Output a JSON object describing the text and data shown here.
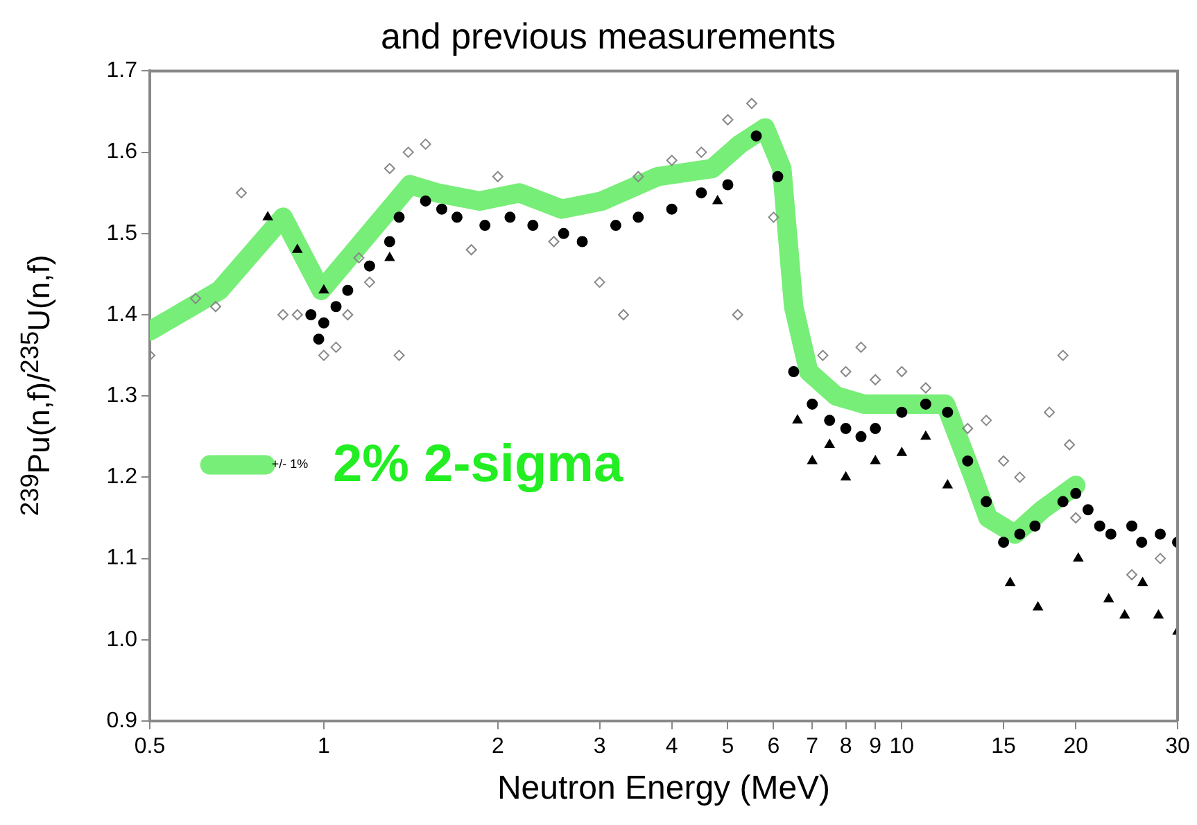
{
  "chart_data": {
    "type": "scatter",
    "title": "and previous measurements",
    "xlabel": "Neutron Energy (MeV)",
    "ylabel": "$^{239}$Pu(n,f)/$^{235}$U(n,f)",
    "annotations": [
      "2% 2-sigma"
    ],
    "log": "x",
    "grid": false,
    "legend": "left",
    "xlim": [
      0.5,
      30
    ],
    "xticks": [
      0.5,
      1,
      2,
      3,
      4,
      5,
      6,
      7,
      8,
      9,
      10,
      15,
      20,
      30
    ],
    "ylim": [
      0.9,
      1.7
    ],
    "yticks": [
      {
        "value": 0.9,
        "label": "0.9"
      },
      {
        "value": 1.0,
        "label": "1.0"
      },
      {
        "value": 1.1,
        "label": "1.1"
      },
      {
        "value": 1.2,
        "label": "1.2"
      },
      {
        "value": 1.3,
        "label": "1.3"
      },
      {
        "value": 1.4,
        "label": "1.4"
      },
      {
        "value": 1.5,
        "label": "1.5"
      },
      {
        "value": 1.6,
        "label": "1.6"
      },
      {
        "value": 1.7,
        "label": "1.7"
      }
    ],
    "series": [
      {
        "marker": "circle",
        "color": "#000000",
        "x": [
          0.95,
          0.98,
          1.0,
          1.05,
          1.1,
          1.2,
          1.3,
          1.35,
          1.5,
          1.6,
          1.7,
          1.9,
          2.1,
          2.3,
          2.6,
          2.8,
          3.2,
          3.5,
          4,
          4.5,
          5,
          5.6,
          6.1,
          6.5,
          7,
          7.5,
          8,
          8.5,
          9,
          10,
          11,
          12,
          13,
          14,
          15,
          16,
          17,
          19,
          20,
          21,
          22,
          23,
          25,
          26,
          28,
          30
        ],
        "values": [
          1.4,
          1.37,
          1.39,
          1.41,
          1.43,
          1.46,
          1.49,
          1.52,
          1.54,
          1.53,
          1.52,
          1.51,
          1.52,
          1.51,
          1.5,
          1.49,
          1.51,
          1.52,
          1.53,
          1.55,
          1.56,
          1.62,
          1.57,
          1.33,
          1.29,
          1.27,
          1.26,
          1.25,
          1.26,
          1.28,
          1.29,
          1.28,
          1.22,
          1.17,
          1.12,
          1.13,
          1.14,
          1.17,
          1.18,
          1.16,
          1.14,
          1.13,
          1.14,
          1.12,
          1.13,
          1.12
        ]
      },
      {
        "marker": "triangle",
        "color": "#000000",
        "x": [
          0.8,
          0.9,
          1.0,
          1.3,
          4.8,
          6.6,
          7,
          7.5,
          8,
          9,
          10,
          11,
          12,
          15.4,
          17.2,
          20.2,
          22.8,
          24.3,
          26.1,
          27.8,
          30
        ],
        "values": [
          1.52,
          1.48,
          1.43,
          1.47,
          1.54,
          1.27,
          1.22,
          1.24,
          1.2,
          1.22,
          1.23,
          1.25,
          1.19,
          1.07,
          1.04,
          1.1,
          1.05,
          1.03,
          1.07,
          1.03,
          1.01
        ]
      },
      {
        "marker": "diamond",
        "color": "#888888",
        "x": [
          0.5,
          0.6,
          0.65,
          0.72,
          0.85,
          0.9,
          1.0,
          1.05,
          1.1,
          1.15,
          1.3,
          1.4,
          1.5,
          1.35,
          1.2,
          1.8,
          2.0,
          2.5,
          3.0,
          3.3,
          3.5,
          4.0,
          4.5,
          5,
          5.5,
          5.2,
          6,
          7.3,
          8,
          8.5,
          9,
          10,
          11,
          13,
          14,
          15,
          16,
          18,
          19,
          19.5,
          20,
          25,
          28
        ],
        "values": [
          1.35,
          1.42,
          1.41,
          1.55,
          1.4,
          1.4,
          1.35,
          1.36,
          1.4,
          1.47,
          1.58,
          1.6,
          1.61,
          1.35,
          1.44,
          1.48,
          1.57,
          1.49,
          1.44,
          1.4,
          1.57,
          1.59,
          1.6,
          1.64,
          1.66,
          1.4,
          1.52,
          1.35,
          1.33,
          1.36,
          1.32,
          1.33,
          1.31,
          1.26,
          1.27,
          1.22,
          1.2,
          1.28,
          1.35,
          1.24,
          1.15,
          1.08,
          1.1
        ]
      },
      {
        "type": "line",
        "name": "+/- 1%",
        "color": "#77ee77",
        "marker": "none",
        "line_style": "solid",
        "x": [
          0.5,
          0.66,
          0.85,
          0.99,
          1.41,
          1.57,
          1.86,
          2.18,
          2.58,
          3.03,
          3.78,
          4.7,
          5.25,
          5.8,
          6.2,
          6.5,
          6.9,
          7.7,
          8.6,
          10.7,
          11.9,
          13.3,
          14.1,
          15.7,
          17.5,
          20
        ],
        "values": [
          1.38,
          1.43,
          1.52,
          1.43,
          1.56,
          1.55,
          1.54,
          1.55,
          1.53,
          1.54,
          1.57,
          1.58,
          1.61,
          1.63,
          1.58,
          1.41,
          1.33,
          1.3,
          1.29,
          1.29,
          1.29,
          1.2,
          1.15,
          1.13,
          1.16,
          1.19
        ]
      }
    ]
  }
}
